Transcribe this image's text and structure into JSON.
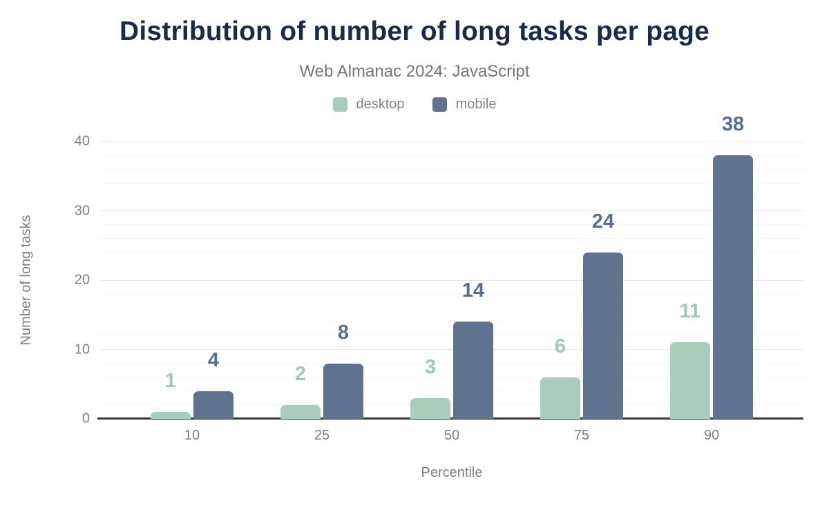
{
  "chart_data": {
    "type": "bar",
    "title": "Distribution of number of long tasks per page",
    "subtitle": "Web Almanac 2024: JavaScript",
    "xlabel": "Percentile",
    "ylabel": "Number of long tasks",
    "categories": [
      "10",
      "25",
      "50",
      "75",
      "90"
    ],
    "series": [
      {
        "name": "desktop",
        "color": "#a9cdbb",
        "label_color": "#a3c9b5",
        "values": [
          1,
          2,
          3,
          6,
          11
        ]
      },
      {
        "name": "mobile",
        "color": "#5f7390",
        "label_color": "#5a6e8e",
        "values": [
          4,
          8,
          14,
          24,
          38
        ]
      }
    ],
    "ylim": [
      0,
      40
    ],
    "yticks": [
      0,
      10,
      20,
      30,
      40
    ],
    "minor_grid_step": 2,
    "grid": true,
    "legend_position": "top",
    "bar_labels": true
  },
  "colors": {
    "title_text": "#1a2b49",
    "subtitle_text": "#74747e",
    "legend_text": "#84848e",
    "tick_text": "#7e7e88",
    "axis_line": "#35353b",
    "grid_minor": "#f5f5f7",
    "grid_major": "#e8e8ec",
    "background": "#ffffff"
  }
}
